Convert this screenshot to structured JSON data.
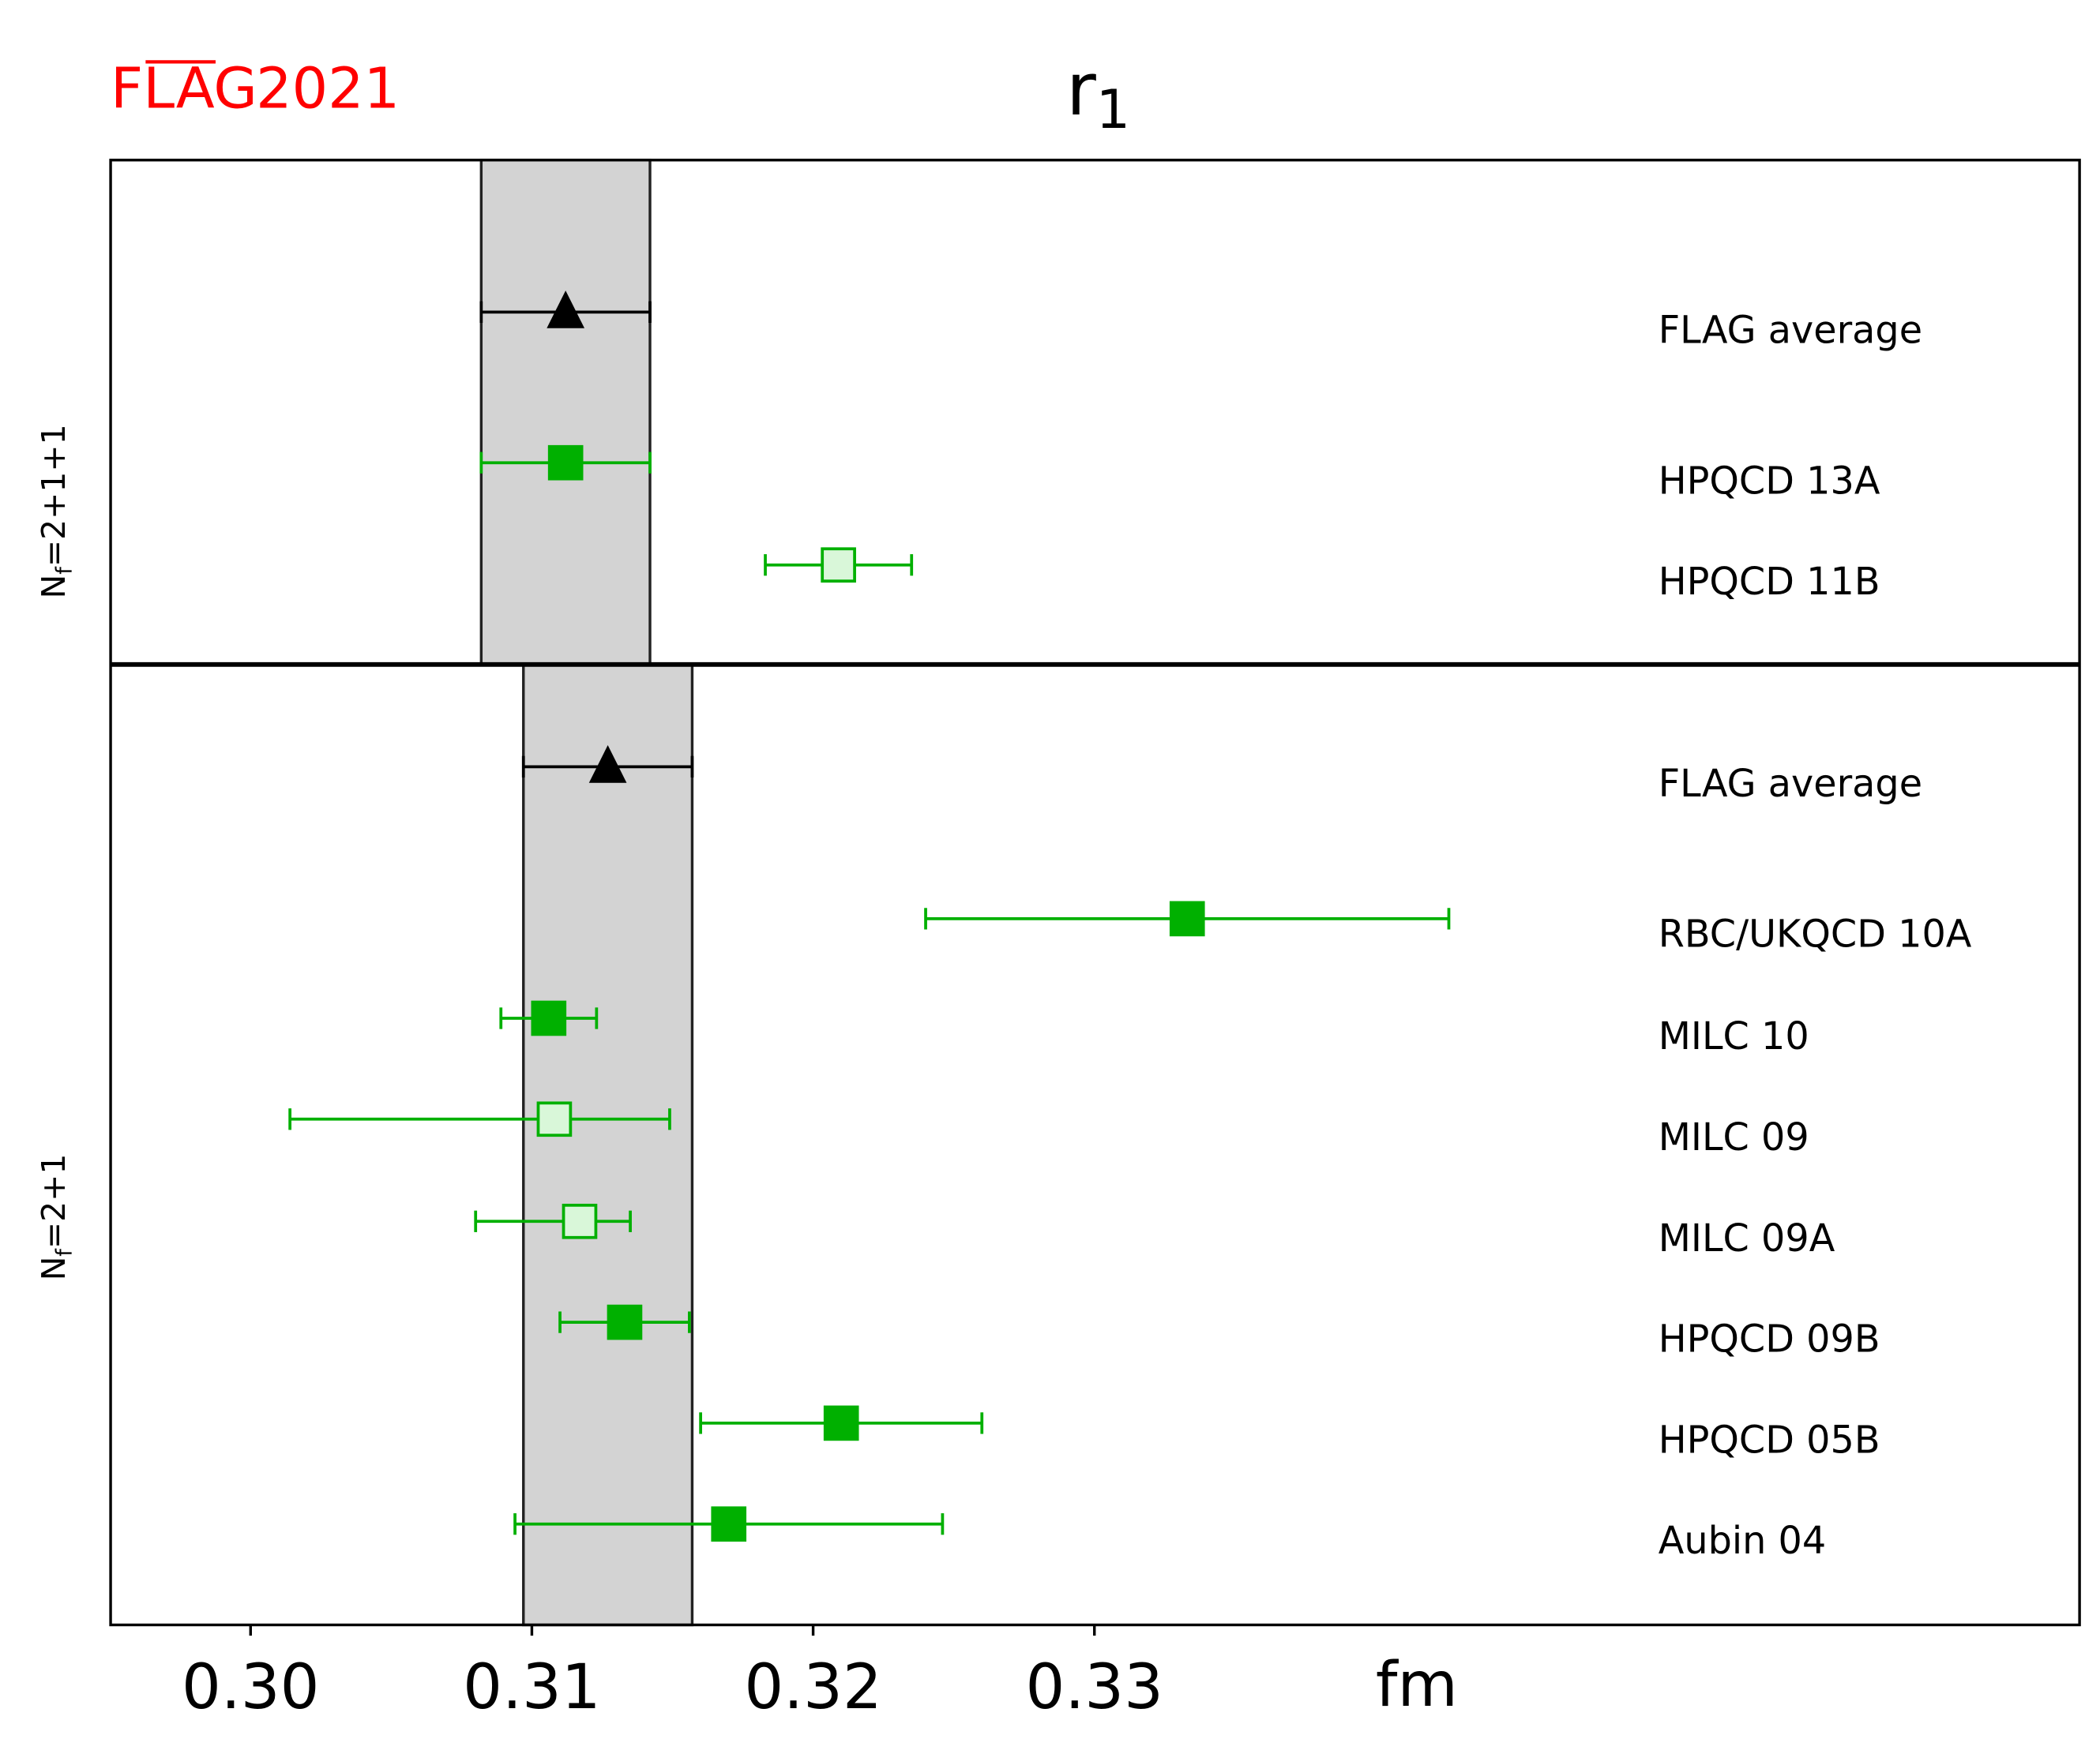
{
  "logo": {
    "text": "FLAG",
    "year": "2021",
    "color": "#ff0000"
  },
  "chart_data": {
    "type": "scatter",
    "title": "r",
    "title_subscript": "1",
    "xlabel": "fm",
    "xlim": [
      0.2951,
      0.365
    ],
    "xticks": [
      0.3,
      0.31,
      0.32,
      0.33
    ],
    "xtick_labels": [
      "0.30",
      "0.31",
      "0.32",
      "0.33"
    ],
    "colors": {
      "data": "#00b000",
      "open_fill": "#d9f7d9",
      "average": "#000000",
      "band": "#d3d3d3"
    },
    "panels": [
      {
        "label": "N_f = 2+1+1",
        "label_text": "N",
        "label_sub": "f",
        "label_rest": "=2+1+1",
        "band": [
          0.3082,
          0.3142
        ],
        "points": [
          {
            "name": "FLAG average",
            "value": 0.3112,
            "lo": 0.3082,
            "hi": 0.3142,
            "marker": "triangle",
            "filled": true
          },
          {
            "name": "HPQCD 13A",
            "value": 0.3112,
            "lo": 0.3082,
            "hi": 0.3142,
            "marker": "square",
            "filled": true
          },
          {
            "name": "HPQCD 11B",
            "value": 0.3209,
            "lo": 0.3183,
            "hi": 0.3235,
            "marker": "square",
            "filled": false
          }
        ]
      },
      {
        "label": "N_f = 2+1",
        "label_text": "N",
        "label_sub": "f",
        "label_rest": "=2+1",
        "band": [
          0.3097,
          0.3157
        ],
        "points": [
          {
            "name": "FLAG average",
            "value": 0.3127,
            "lo": 0.3097,
            "hi": 0.3157,
            "marker": "triangle",
            "filled": true
          },
          {
            "name": "RBC/UKQCD 10A",
            "value": 0.3333,
            "lo": 0.324,
            "hi": 0.3426,
            "marker": "square",
            "filled": true
          },
          {
            "name": "MILC 10",
            "value": 0.3106,
            "lo": 0.3089,
            "hi": 0.3123,
            "marker": "square",
            "filled": true
          },
          {
            "name": "MILC 09",
            "value": 0.3108,
            "lo": 0.3014,
            "hi": 0.3149,
            "marker": "square",
            "filled": false
          },
          {
            "name": "MILC 09A",
            "value": 0.3117,
            "lo": 0.308,
            "hi": 0.3135,
            "marker": "square",
            "filled": false
          },
          {
            "name": "HPQCD 09B",
            "value": 0.3133,
            "lo": 0.311,
            "hi": 0.3156,
            "marker": "square",
            "filled": true
          },
          {
            "name": "HPQCD 05B",
            "value": 0.321,
            "lo": 0.316,
            "hi": 0.326,
            "marker": "square",
            "filled": true
          },
          {
            "name": "Aubin 04",
            "value": 0.317,
            "lo": 0.3094,
            "hi": 0.3246,
            "marker": "square",
            "filled": true
          }
        ]
      }
    ]
  }
}
